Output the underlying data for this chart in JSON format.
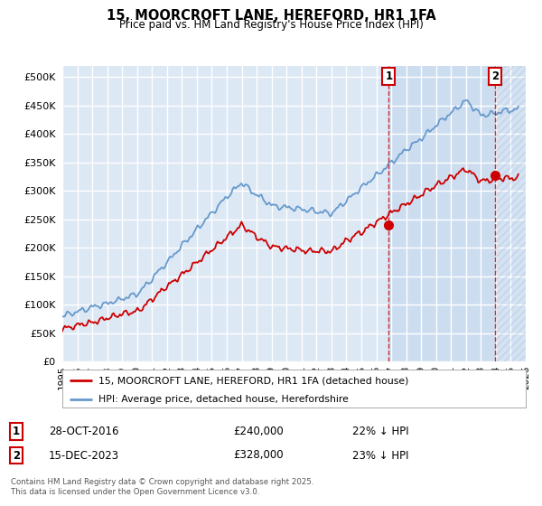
{
  "title": "15, MOORCROFT LANE, HEREFORD, HR1 1FA",
  "subtitle": "Price paid vs. HM Land Registry's House Price Index (HPI)",
  "property_label": "15, MOORCROFT LANE, HEREFORD, HR1 1FA (detached house)",
  "hpi_label": "HPI: Average price, detached house, Herefordshire",
  "annotation1_date": "28-OCT-2016",
  "annotation1_price": "£240,000",
  "annotation1_hpi": "22% ↓ HPI",
  "annotation2_date": "15-DEC-2023",
  "annotation2_price": "£328,000",
  "annotation2_hpi": "23% ↓ HPI",
  "footer": "Contains HM Land Registry data © Crown copyright and database right 2025.\nThis data is licensed under the Open Government Licence v3.0.",
  "property_color": "#cc0000",
  "hpi_color": "#6699cc",
  "annotation_color": "#cc0000",
  "background_color": "#dde8f5",
  "highlight_color": "#ccddf0",
  "grid_color": "#ffffff",
  "ylim": [
    0,
    520000
  ],
  "yticks": [
    0,
    50000,
    100000,
    150000,
    200000,
    250000,
    300000,
    350000,
    400000,
    450000,
    500000
  ],
  "sale1_x": 2016.83,
  "sale1_y": 240000,
  "sale2_x": 2023.96,
  "sale2_y": 328000,
  "xmin": 1995,
  "xmax": 2026
}
